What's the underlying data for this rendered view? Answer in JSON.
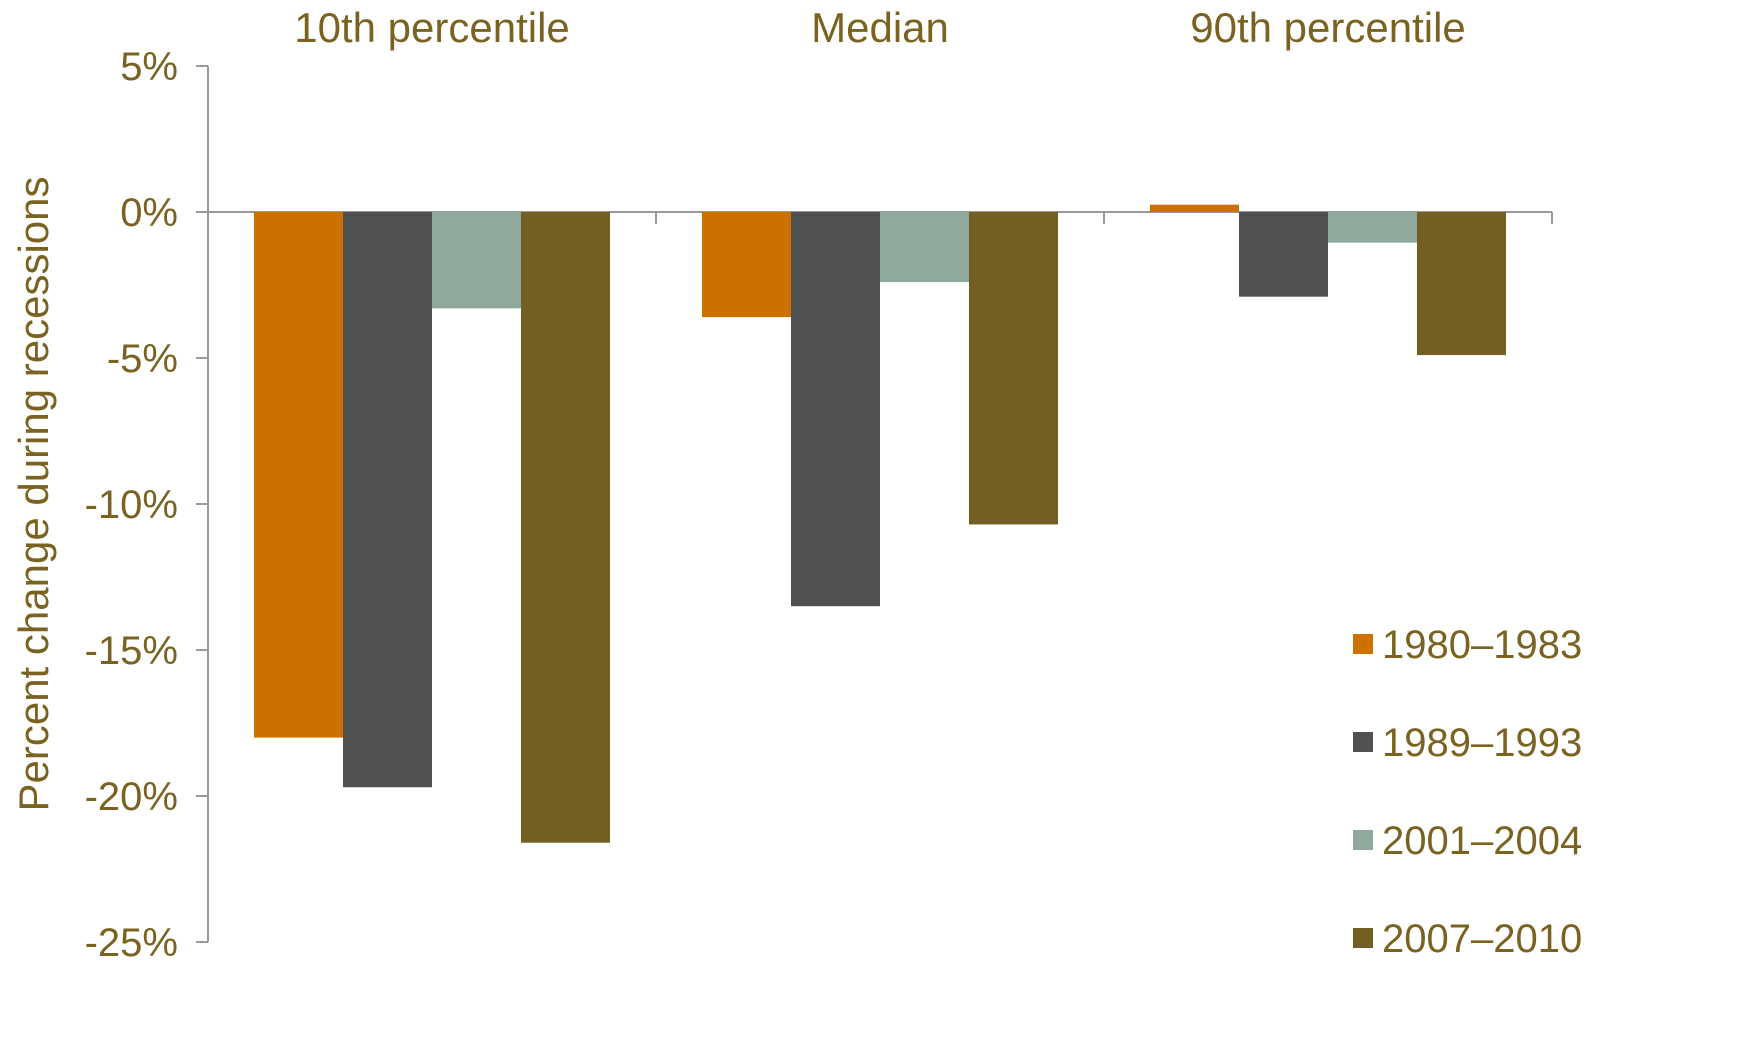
{
  "chart_data": {
    "type": "bar",
    "categories": [
      "10th percentile",
      "Median",
      "90th percentile"
    ],
    "series": [
      {
        "name": "1980–1983",
        "color": "#cc7000",
        "values": [
          -18.0,
          -3.6,
          0.25
        ]
      },
      {
        "name": "1989–1993",
        "color": "#505052",
        "values": [
          -19.7,
          -13.5,
          -2.9
        ]
      },
      {
        "name": "2001–2004",
        "color": "#8fa89c",
        "values": [
          -3.3,
          -2.4,
          -1.05
        ]
      },
      {
        "name": "2007–2010",
        "color": "#735f24",
        "values": [
          -21.6,
          -10.7,
          -4.9
        ]
      }
    ],
    "ylabel": "Percent change during recessions",
    "xlabel": "",
    "ylim": [
      -25,
      5
    ],
    "yticks": [
      5,
      0,
      -5,
      -10,
      -15,
      -20,
      -25
    ],
    "ytick_labels": [
      "5%",
      "0%",
      "-5%",
      "-10%",
      "-15%",
      "-20%",
      "-25%"
    ],
    "category_label_position": "top",
    "legend_position": "right",
    "grid": false,
    "text_color": "#7a6320",
    "axis_color": "#9a9a9a"
  }
}
